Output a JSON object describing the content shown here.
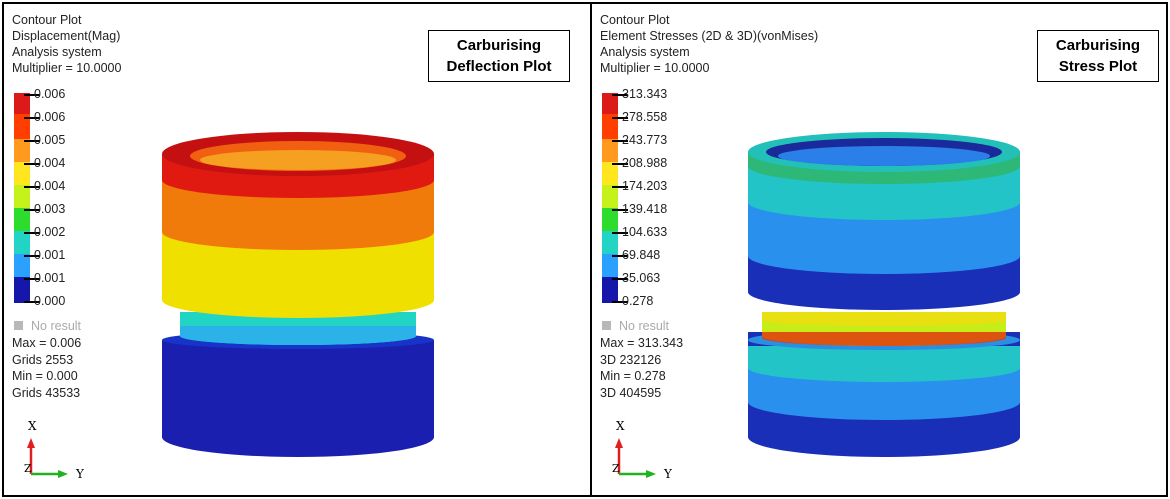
{
  "left_panel": {
    "header": [
      "Contour Plot",
      "Displacement(Mag)",
      "Analysis system",
      "Multiplier = 10.0000"
    ],
    "title": [
      "Carburising",
      "Deflection Plot"
    ],
    "legend": {
      "labels": [
        "0.006",
        "0.006",
        "0.005",
        "0.004",
        "0.004",
        "0.003",
        "0.002",
        "0.001",
        "0.001",
        "0.000"
      ],
      "colors": [
        "#dd1a1a",
        "#ff3e00",
        "#ff9a1e",
        "#ffe61e",
        "#c5f21a",
        "#2edc2e",
        "#22d4c4",
        "#2aa0ff",
        "#1f4ff0",
        "#1616aa"
      ]
    },
    "no_result": "No result",
    "stats": [
      "Max = 0.006",
      "Grids 2553",
      "Min = 0.000",
      "Grids 43533"
    ],
    "axis": {
      "x": "X",
      "y": "Y",
      "z": "Z"
    }
  },
  "right_panel": {
    "header": [
      "Contour Plot",
      "Element Stresses (2D & 3D)(vonMises)",
      "Analysis system",
      "Multiplier = 10.0000"
    ],
    "title": [
      "Carburising",
      "Stress Plot"
    ],
    "legend": {
      "labels": [
        "313.343",
        "278.558",
        "243.773",
        "208.988",
        "174.203",
        "139.418",
        "104.633",
        "69.848",
        "35.063",
        "0.278"
      ],
      "colors": [
        "#dd1a1a",
        "#ff3e00",
        "#ff9a1e",
        "#ffe61e",
        "#c5f21a",
        "#2edc2e",
        "#22d4c4",
        "#2aa0ff",
        "#1f4ff0",
        "#1616aa"
      ]
    },
    "no_result": "No result",
    "stats": [
      "Max = 313.343",
      "3D 232126",
      "Min = 0.278",
      "3D 404595"
    ],
    "axis": {
      "x": "X",
      "y": "Y",
      "z": "Z"
    }
  }
}
